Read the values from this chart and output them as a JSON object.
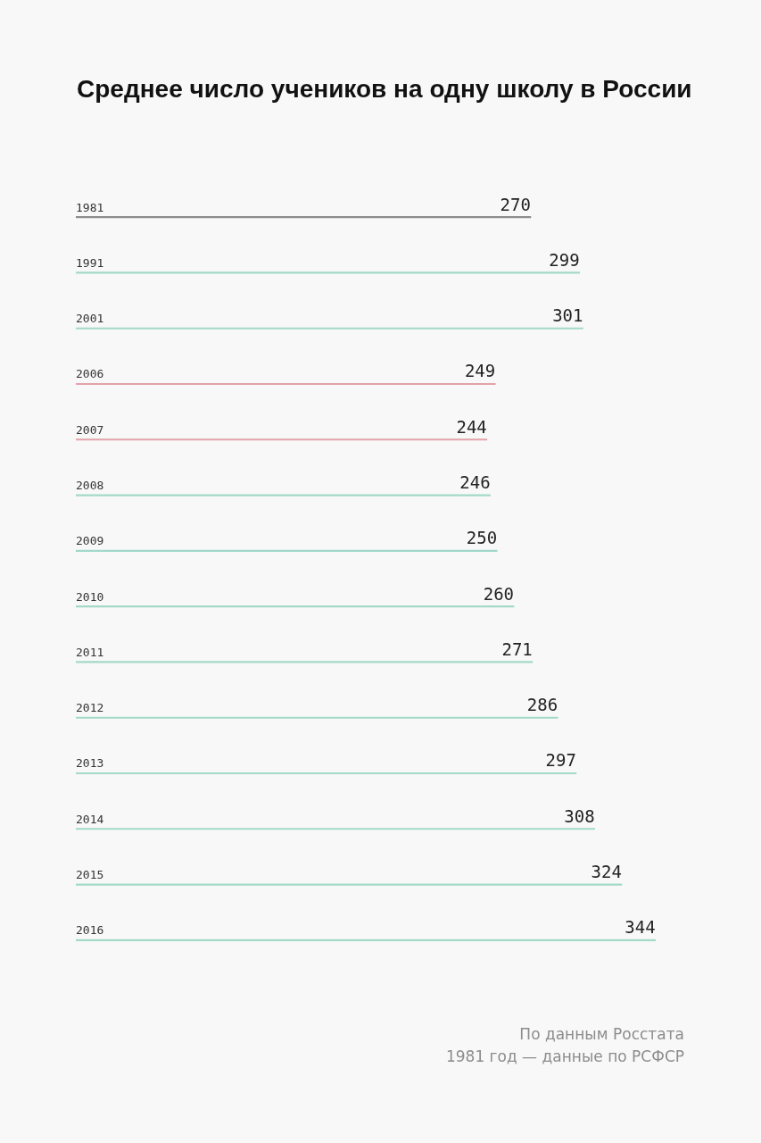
{
  "chart_data": {
    "type": "bar",
    "orientation": "horizontal",
    "title": "Среднее число учеников на одну школу в России",
    "categories": [
      "1981",
      "1991",
      "2001",
      "2006",
      "2007",
      "2008",
      "2009",
      "2010",
      "2011",
      "2012",
      "2013",
      "2014",
      "2015",
      "2016"
    ],
    "values": [
      270,
      299,
      301,
      249,
      244,
      246,
      250,
      260,
      271,
      286,
      297,
      308,
      324,
      344
    ],
    "colors": [
      "#8c8c8c",
      "#a3d9c9",
      "#a3d9c9",
      "#e3a3a9",
      "#e3a3a9",
      "#a3d9c9",
      "#a3d9c9",
      "#a3d9c9",
      "#a3d9c9",
      "#a3d9c9",
      "#a3d9c9",
      "#a3d9c9",
      "#a3d9c9",
      "#a3d9c9"
    ],
    "data_labels": true,
    "tick_labels": "y",
    "annotations": [
      "По данным Росстата",
      "1981 год — данные по РСФСР"
    ]
  }
}
